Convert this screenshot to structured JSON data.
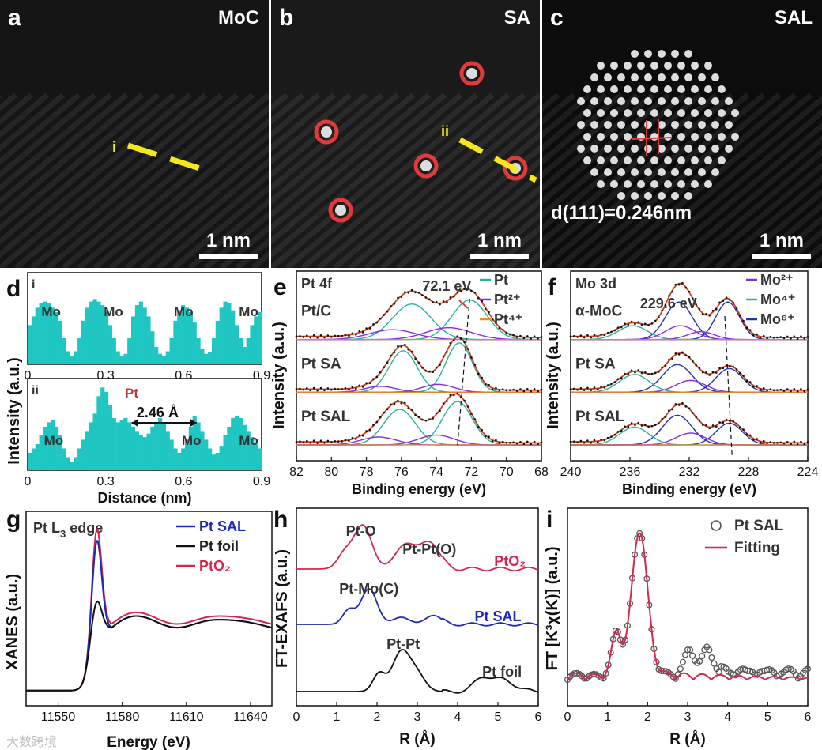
{
  "panels": {
    "a": {
      "letter": "a",
      "label": "MoC",
      "scale": "1 nm",
      "line": "i"
    },
    "b": {
      "letter": "b",
      "label": "SA",
      "scale": "1 nm",
      "line": "ii"
    },
    "c": {
      "letter": "c",
      "label": "SAL",
      "scale": "1 nm",
      "dspacing": "d(111)=0.246nm"
    },
    "d": {
      "letter": "d",
      "ylabel": "Intensity (a.u.)",
      "xlabel": "Distance (nm)",
      "sub1": "i",
      "sub2": "ii",
      "pt": "Pt",
      "distance": "2.46 Å"
    },
    "e": {
      "letter": "e",
      "title": "Pt 4f",
      "ylabel": "Intensity (a.u.)",
      "xlabel": "Binding energy (eV)",
      "peak": "72.1 eV"
    },
    "f": {
      "letter": "f",
      "title": "Mo 3d",
      "ylabel": "Intensity (a.u.)",
      "xlabel": "Binding energy (eV)",
      "peak": "229.6 eV"
    },
    "g": {
      "letter": "g",
      "title": "Pt L",
      "title_sub": "3",
      "title_end": " edge",
      "ylabel": "XANES (a.u.)",
      "xlabel": "Energy (eV)"
    },
    "h": {
      "letter": "h",
      "ylabel": "FT-EXAFS (a.u.)",
      "xlabel": "R (Å)"
    },
    "i": {
      "letter": "i",
      "ylabel": "FT [K³χ(K)] (a.u.)",
      "xlabel": "R (Å)"
    }
  },
  "colors": {
    "teal": "#1fc6c2",
    "red": "#e03a3a",
    "blue": "#1c2bb8",
    "crimson": "#d6264e",
    "purple": "#8a2be2",
    "green": "#2ab39a",
    "orange": "#f08c28",
    "navy": "#2233aa",
    "yellow": "#f4e81c",
    "black": "#111111"
  },
  "watermark": "大数跨境",
  "chart_data": [
    {
      "id": "d-i",
      "type": "bar",
      "xlabel": "",
      "ylabel": "",
      "xlim": [
        0,
        0.9
      ],
      "xticks": [
        "0",
        "0.3",
        "0.6",
        "0.9"
      ],
      "annotations": [
        "Mo",
        "Mo",
        "Mo",
        "Mo"
      ],
      "x": [
        0.0,
        0.015,
        0.03,
        0.045,
        0.06,
        0.075,
        0.09,
        0.105,
        0.12,
        0.135,
        0.15,
        0.165,
        0.18,
        0.195,
        0.21,
        0.225,
        0.24,
        0.255,
        0.27,
        0.285,
        0.3,
        0.315,
        0.33,
        0.345,
        0.36,
        0.375,
        0.39,
        0.405,
        0.42,
        0.435,
        0.45,
        0.465,
        0.48,
        0.495,
        0.51,
        0.525,
        0.54,
        0.555,
        0.57,
        0.585,
        0.6,
        0.615,
        0.63,
        0.645,
        0.66,
        0.675,
        0.69,
        0.705,
        0.72,
        0.735,
        0.75,
        0.765,
        0.78,
        0.795,
        0.81,
        0.825,
        0.84,
        0.855,
        0.87,
        0.885,
        0.9
      ],
      "values": [
        0.45,
        0.55,
        0.65,
        0.7,
        0.72,
        0.7,
        0.65,
        0.6,
        0.5,
        0.3,
        0.15,
        0.1,
        0.15,
        0.3,
        0.5,
        0.65,
        0.72,
        0.75,
        0.72,
        0.68,
        0.6,
        0.45,
        0.3,
        0.15,
        0.1,
        0.12,
        0.3,
        0.55,
        0.68,
        0.72,
        0.65,
        0.55,
        0.38,
        0.2,
        0.12,
        0.1,
        0.15,
        0.3,
        0.5,
        0.62,
        0.68,
        0.65,
        0.6,
        0.48,
        0.3,
        0.18,
        0.12,
        0.14,
        0.3,
        0.5,
        0.65,
        0.72,
        0.7,
        0.62,
        0.45,
        0.3,
        0.2,
        0.3,
        0.45,
        0.55,
        0.6
      ]
    },
    {
      "id": "d-ii",
      "type": "bar",
      "xlabel": "Distance (nm)",
      "ylabel": "",
      "xlim": [
        0,
        0.9
      ],
      "xticks": [
        "0",
        "0.3",
        "0.6",
        "0.9"
      ],
      "annotations": [
        "Mo",
        "Pt",
        "Mo",
        "Mo"
      ],
      "x": [
        0.0,
        0.015,
        0.03,
        0.045,
        0.06,
        0.075,
        0.09,
        0.105,
        0.12,
        0.135,
        0.15,
        0.165,
        0.18,
        0.195,
        0.21,
        0.225,
        0.24,
        0.255,
        0.27,
        0.285,
        0.3,
        0.315,
        0.33,
        0.345,
        0.36,
        0.375,
        0.39,
        0.405,
        0.42,
        0.435,
        0.45,
        0.465,
        0.48,
        0.495,
        0.51,
        0.525,
        0.54,
        0.555,
        0.57,
        0.585,
        0.6,
        0.615,
        0.63,
        0.645,
        0.66,
        0.675,
        0.69,
        0.705,
        0.72,
        0.735,
        0.75,
        0.765,
        0.78,
        0.795,
        0.81,
        0.825,
        0.84,
        0.855,
        0.87,
        0.885,
        0.9
      ],
      "values": [
        0.2,
        0.25,
        0.3,
        0.4,
        0.5,
        0.55,
        0.58,
        0.5,
        0.4,
        0.25,
        0.15,
        0.1,
        0.15,
        0.25,
        0.35,
        0.45,
        0.55,
        0.65,
        0.85,
        0.95,
        0.9,
        0.75,
        0.6,
        0.55,
        0.58,
        0.6,
        0.55,
        0.5,
        0.45,
        0.4,
        0.38,
        0.42,
        0.5,
        0.55,
        0.6,
        0.55,
        0.45,
        0.35,
        0.25,
        0.2,
        0.25,
        0.35,
        0.5,
        0.62,
        0.55,
        0.45,
        0.35,
        0.25,
        0.18,
        0.2,
        0.28,
        0.4,
        0.5,
        0.6,
        0.62,
        0.6,
        0.52,
        0.45,
        0.38,
        0.3,
        0.25
      ]
    },
    {
      "id": "e",
      "type": "line",
      "xlabel": "Binding energy (eV)",
      "ylabel": "Intensity (a.u.)",
      "xlim": [
        82,
        68
      ],
      "xticks": [
        82,
        80,
        78,
        76,
        74,
        72,
        70,
        68
      ],
      "legend": [
        "Pt",
        "Pt²⁺",
        "Pt⁴⁺"
      ],
      "sample_labels": [
        "Pt/C",
        "Pt SA",
        "Pt SAL"
      ],
      "peak_label": "72.1 eV",
      "series": [
        {
          "name": "Pt/C",
          "offset": 2.0,
          "peaks": [
            [
              75.4,
              0.9,
              1.1
            ],
            [
              72.1,
              1.0,
              1.0
            ],
            [
              76.5,
              0.25,
              1.3
            ],
            [
              73.3,
              0.3,
              1.3
            ]
          ]
        },
        {
          "name": "Pt SA",
          "offset": 1.0,
          "peaks": [
            [
              75.9,
              1.05,
              0.8
            ],
            [
              72.7,
              1.25,
              0.75
            ],
            [
              77.2,
              0.15,
              0.9
            ],
            [
              73.9,
              0.2,
              0.9
            ]
          ]
        },
        {
          "name": "Pt SAL",
          "offset": 0.0,
          "peaks": [
            [
              76.1,
              0.9,
              0.9
            ],
            [
              72.8,
              1.1,
              0.85
            ],
            [
              77.3,
              0.2,
              1.0
            ],
            [
              74.0,
              0.25,
              1.0
            ]
          ]
        }
      ]
    },
    {
      "id": "f",
      "type": "line",
      "xlabel": "Binding energy (eV)",
      "ylabel": "Intensity (a.u.)",
      "xlim": [
        240,
        224
      ],
      "xticks": [
        240,
        236,
        232,
        228,
        224
      ],
      "legend": [
        "Mo²⁺",
        "Mo⁴⁺",
        "Mo⁶⁺"
      ],
      "sample_labels": [
        "α-MoC",
        "Pt SA",
        "Pt SAL"
      ],
      "peak_label": "229.6 eV",
      "series": [
        {
          "name": "α-MoC",
          "offset": 2.0,
          "peaks": [
            [
              232.7,
              0.95,
              0.9
            ],
            [
              229.4,
              0.95,
              0.8
            ],
            [
              235.8,
              0.35,
              1.0
            ],
            [
              232.6,
              0.35,
              1.0
            ],
            [
              231.2,
              0.2,
              0.9
            ]
          ]
        },
        {
          "name": "Pt SA",
          "offset": 1.0,
          "peaks": [
            [
              232.8,
              0.7,
              1.0
            ],
            [
              229.3,
              0.6,
              0.9
            ],
            [
              235.7,
              0.45,
              1.0
            ],
            [
              231.9,
              0.3,
              1.0
            ]
          ]
        },
        {
          "name": "Pt SAL",
          "offset": 0.0,
          "peaks": [
            [
              232.8,
              0.75,
              1.0
            ],
            [
              229.3,
              0.55,
              0.9
            ],
            [
              235.7,
              0.45,
              1.0
            ],
            [
              231.9,
              0.3,
              1.0
            ]
          ]
        }
      ]
    },
    {
      "id": "g",
      "type": "line",
      "xlabel": "Energy (eV)",
      "ylabel": "XANES (a.u.)",
      "xlim": [
        11535,
        11650
      ],
      "xticks": [
        11550,
        11580,
        11610,
        11640
      ],
      "legend": [
        "Pt SAL",
        "Pt foil",
        "PtO₂"
      ]
    },
    {
      "id": "h",
      "type": "line",
      "xlabel": "R (Å)",
      "ylabel": "FT-EXAFS (a.u.)",
      "xlim": [
        0,
        6
      ],
      "xticks": [
        0,
        1,
        2,
        3,
        4,
        5,
        6
      ],
      "series_labels": [
        "PtO₂",
        "Pt SAL",
        "Pt foil"
      ],
      "annotations": [
        "Pt-O",
        "Pt-Pt(O)",
        "Pt-Mo(C)",
        "Pt-Pt"
      ],
      "series": [
        {
          "name": "PtO₂",
          "peaks": [
            [
              1.2,
              0.35,
              0.18
            ],
            [
              1.65,
              1.0,
              0.22
            ],
            [
              2.7,
              0.55,
              0.25
            ],
            [
              3.3,
              0.6,
              0.25
            ]
          ]
        },
        {
          "name": "Pt SAL",
          "peaks": [
            [
              1.3,
              0.4,
              0.15
            ],
            [
              1.8,
              1.0,
              0.2
            ],
            [
              2.6,
              0.2,
              0.2
            ],
            [
              3.4,
              0.25,
              0.2
            ]
          ]
        },
        {
          "name": "Pt foil",
          "peaks": [
            [
              2.05,
              0.45,
              0.15
            ],
            [
              2.6,
              1.0,
              0.22
            ],
            [
              3.0,
              0.4,
              0.2
            ],
            [
              4.6,
              0.3,
              0.2
            ],
            [
              5.1,
              0.3,
              0.3
            ]
          ]
        }
      ]
    },
    {
      "id": "i",
      "type": "scatter",
      "xlabel": "R (Å)",
      "ylabel": "FT [K³χ(K)] (a.u.)",
      "xlim": [
        0,
        6
      ],
      "xticks": [
        0,
        1,
        2,
        3,
        4,
        5,
        6
      ],
      "legend": [
        "Pt SAL",
        "Fitting"
      ]
    }
  ]
}
